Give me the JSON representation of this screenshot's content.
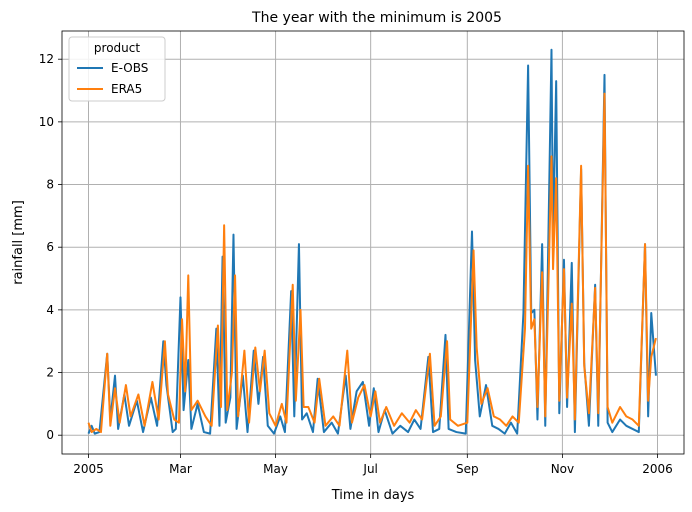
{
  "chart_data": {
    "type": "line",
    "title": "The year with the minimum is 2005",
    "xlabel": "Time in days",
    "ylabel": "rainfall [mm]",
    "xlim": [
      "2004-12-15",
      "2006-01-18"
    ],
    "ylim": [
      -0.6,
      12.9
    ],
    "x_ticks": [
      {
        "date": "2005-01-01",
        "label": "2005"
      },
      {
        "date": "2005-03-01",
        "label": "Mar"
      },
      {
        "date": "2005-05-01",
        "label": "May"
      },
      {
        "date": "2005-07-01",
        "label": "Jul"
      },
      {
        "date": "2005-09-01",
        "label": "Sep"
      },
      {
        "date": "2005-11-01",
        "label": "Nov"
      },
      {
        "date": "2006-01-01",
        "label": "2006"
      }
    ],
    "y_ticks": [
      0,
      2,
      4,
      6,
      8,
      10,
      12
    ],
    "grid": true,
    "legend": {
      "title": "product",
      "placement": "top-left"
    },
    "series": [
      {
        "name": "E-OBS",
        "color": "#1f77b4",
        "points": [
          [
            "2005-01-01",
            0.05
          ],
          [
            "2005-01-03",
            0.3
          ],
          [
            "2005-01-05",
            0.05
          ],
          [
            "2005-01-08",
            0.1
          ],
          [
            "2005-01-13",
            2.6
          ],
          [
            "2005-01-15",
            0.5
          ],
          [
            "2005-01-18",
            1.9
          ],
          [
            "2005-01-20",
            0.2
          ],
          [
            "2005-01-24",
            1.3
          ],
          [
            "2005-01-27",
            0.3
          ],
          [
            "2005-02-01",
            1.1
          ],
          [
            "2005-02-05",
            0.1
          ],
          [
            "2005-02-10",
            1.2
          ],
          [
            "2005-02-14",
            0.3
          ],
          [
            "2005-02-18",
            3.0
          ],
          [
            "2005-02-20",
            1.6
          ],
          [
            "2005-02-24",
            0.1
          ],
          [
            "2005-02-26",
            0.2
          ],
          [
            "2005-03-01",
            4.4
          ],
          [
            "2005-03-03",
            0.8
          ],
          [
            "2005-03-06",
            2.4
          ],
          [
            "2005-03-08",
            0.2
          ],
          [
            "2005-03-12",
            1.0
          ],
          [
            "2005-03-16",
            0.1
          ],
          [
            "2005-03-20",
            0.05
          ],
          [
            "2005-03-24",
            3.4
          ],
          [
            "2005-03-26",
            0.3
          ],
          [
            "2005-03-28",
            5.7
          ],
          [
            "2005-03-30",
            0.4
          ],
          [
            "2005-04-02",
            1.2
          ],
          [
            "2005-04-04",
            6.4
          ],
          [
            "2005-04-06",
            0.2
          ],
          [
            "2005-04-10",
            1.9
          ],
          [
            "2005-04-13",
            0.1
          ],
          [
            "2005-04-17",
            2.7
          ],
          [
            "2005-04-20",
            1.0
          ],
          [
            "2005-04-23",
            2.5
          ],
          [
            "2005-04-26",
            0.3
          ],
          [
            "2005-04-30",
            0.05
          ],
          [
            "2005-05-04",
            0.6
          ],
          [
            "2005-05-07",
            0.1
          ],
          [
            "2005-05-11",
            4.6
          ],
          [
            "2005-05-13",
            0.6
          ],
          [
            "2005-05-16",
            6.1
          ],
          [
            "2005-05-18",
            0.5
          ],
          [
            "2005-05-21",
            0.7
          ],
          [
            "2005-05-25",
            0.1
          ],
          [
            "2005-05-28",
            1.8
          ],
          [
            "2005-06-01",
            0.1
          ],
          [
            "2005-06-06",
            0.4
          ],
          [
            "2005-06-10",
            0.05
          ],
          [
            "2005-06-15",
            1.9
          ],
          [
            "2005-06-18",
            0.2
          ],
          [
            "2005-06-22",
            1.4
          ],
          [
            "2005-06-26",
            1.7
          ],
          [
            "2005-06-30",
            0.3
          ],
          [
            "2005-07-03",
            1.5
          ],
          [
            "2005-07-06",
            0.1
          ],
          [
            "2005-07-10",
            0.8
          ],
          [
            "2005-07-15",
            0.05
          ],
          [
            "2005-07-20",
            0.3
          ],
          [
            "2005-07-25",
            0.1
          ],
          [
            "2005-07-29",
            0.5
          ],
          [
            "2005-08-02",
            0.2
          ],
          [
            "2005-08-07",
            2.5
          ],
          [
            "2005-08-10",
            0.1
          ],
          [
            "2005-08-14",
            0.2
          ],
          [
            "2005-08-18",
            3.2
          ],
          [
            "2005-08-20",
            0.2
          ],
          [
            "2005-08-25",
            0.1
          ],
          [
            "2005-08-31",
            0.05
          ],
          [
            "2005-09-04",
            6.5
          ],
          [
            "2005-09-06",
            2.4
          ],
          [
            "2005-09-09",
            0.6
          ],
          [
            "2005-09-13",
            1.6
          ],
          [
            "2005-09-17",
            0.3
          ],
          [
            "2005-09-21",
            0.2
          ],
          [
            "2005-09-25",
            0.05
          ],
          [
            "2005-09-29",
            0.4
          ],
          [
            "2005-10-03",
            0.05
          ],
          [
            "2005-10-07",
            3.9
          ],
          [
            "2005-10-10",
            11.8
          ],
          [
            "2005-10-12",
            3.9
          ],
          [
            "2005-10-14",
            4.0
          ],
          [
            "2005-10-16",
            0.5
          ],
          [
            "2005-10-19",
            6.1
          ],
          [
            "2005-10-21",
            0.3
          ],
          [
            "2005-10-25",
            12.3
          ],
          [
            "2005-10-26",
            6.2
          ],
          [
            "2005-10-28",
            11.3
          ],
          [
            "2005-10-30",
            0.7
          ],
          [
            "2005-11-02",
            5.6
          ],
          [
            "2005-11-04",
            0.9
          ],
          [
            "2005-11-07",
            5.5
          ],
          [
            "2005-11-09",
            0.1
          ],
          [
            "2005-11-13",
            8.5
          ],
          [
            "2005-11-15",
            2.3
          ],
          [
            "2005-11-18",
            0.3
          ],
          [
            "2005-11-22",
            4.8
          ],
          [
            "2005-11-24",
            0.3
          ],
          [
            "2005-11-28",
            11.5
          ],
          [
            "2005-11-30",
            0.4
          ],
          [
            "2005-12-03",
            0.1
          ],
          [
            "2005-12-08",
            0.5
          ],
          [
            "2005-12-12",
            0.3
          ],
          [
            "2005-12-16",
            0.2
          ],
          [
            "2005-12-20",
            0.1
          ],
          [
            "2005-12-24",
            6.1
          ],
          [
            "2005-12-26",
            0.6
          ],
          [
            "2005-12-28",
            3.9
          ],
          [
            "2005-12-31",
            1.9
          ]
        ]
      },
      {
        "name": "ERA5",
        "color": "#ff7f0e",
        "points": [
          [
            "2005-01-01",
            0.4
          ],
          [
            "2005-01-03",
            0.1
          ],
          [
            "2005-01-06",
            0.2
          ],
          [
            "2005-01-09",
            0.1
          ],
          [
            "2005-01-13",
            2.6
          ],
          [
            "2005-01-15",
            0.3
          ],
          [
            "2005-01-18",
            1.5
          ],
          [
            "2005-01-21",
            0.4
          ],
          [
            "2005-01-25",
            1.6
          ],
          [
            "2005-01-28",
            0.6
          ],
          [
            "2005-02-02",
            1.3
          ],
          [
            "2005-02-06",
            0.3
          ],
          [
            "2005-02-11",
            1.7
          ],
          [
            "2005-02-15",
            0.5
          ],
          [
            "2005-02-19",
            3.0
          ],
          [
            "2005-02-21",
            1.3
          ],
          [
            "2005-02-25",
            0.5
          ],
          [
            "2005-02-28",
            0.4
          ],
          [
            "2005-03-02",
            3.7
          ],
          [
            "2005-03-04",
            1.4
          ],
          [
            "2005-03-06",
            5.1
          ],
          [
            "2005-03-08",
            0.8
          ],
          [
            "2005-03-12",
            1.1
          ],
          [
            "2005-03-17",
            0.6
          ],
          [
            "2005-03-21",
            0.3
          ],
          [
            "2005-03-25",
            3.5
          ],
          [
            "2005-03-27",
            0.9
          ],
          [
            "2005-03-29",
            6.7
          ],
          [
            "2005-03-31",
            0.8
          ],
          [
            "2005-04-03",
            2.0
          ],
          [
            "2005-04-05",
            5.1
          ],
          [
            "2005-04-07",
            0.6
          ],
          [
            "2005-04-11",
            2.7
          ],
          [
            "2005-04-14",
            0.4
          ],
          [
            "2005-04-18",
            2.8
          ],
          [
            "2005-04-21",
            1.4
          ],
          [
            "2005-04-24",
            2.7
          ],
          [
            "2005-04-27",
            0.7
          ],
          [
            "2005-05-01",
            0.3
          ],
          [
            "2005-05-05",
            1.0
          ],
          [
            "2005-05-08",
            0.4
          ],
          [
            "2005-05-12",
            4.8
          ],
          [
            "2005-05-14",
            1.1
          ],
          [
            "2005-05-17",
            4.0
          ],
          [
            "2005-05-19",
            0.9
          ],
          [
            "2005-05-22",
            0.9
          ],
          [
            "2005-05-26",
            0.4
          ],
          [
            "2005-05-29",
            1.8
          ],
          [
            "2005-06-02",
            0.3
          ],
          [
            "2005-06-07",
            0.6
          ],
          [
            "2005-06-11",
            0.3
          ],
          [
            "2005-06-16",
            2.7
          ],
          [
            "2005-06-19",
            0.4
          ],
          [
            "2005-06-23",
            1.2
          ],
          [
            "2005-06-27",
            1.6
          ],
          [
            "2005-07-01",
            0.6
          ],
          [
            "2005-07-04",
            1.4
          ],
          [
            "2005-07-07",
            0.4
          ],
          [
            "2005-07-11",
            0.9
          ],
          [
            "2005-07-16",
            0.3
          ],
          [
            "2005-07-21",
            0.7
          ],
          [
            "2005-07-26",
            0.4
          ],
          [
            "2005-07-30",
            0.8
          ],
          [
            "2005-08-03",
            0.5
          ],
          [
            "2005-08-08",
            2.6
          ],
          [
            "2005-08-11",
            0.3
          ],
          [
            "2005-08-15",
            0.6
          ],
          [
            "2005-08-19",
            3.0
          ],
          [
            "2005-08-21",
            0.5
          ],
          [
            "2005-08-26",
            0.3
          ],
          [
            "2005-09-01",
            0.4
          ],
          [
            "2005-09-05",
            5.9
          ],
          [
            "2005-09-07",
            2.8
          ],
          [
            "2005-09-10",
            1.0
          ],
          [
            "2005-09-14",
            1.5
          ],
          [
            "2005-09-18",
            0.6
          ],
          [
            "2005-09-22",
            0.5
          ],
          [
            "2005-09-26",
            0.3
          ],
          [
            "2005-09-30",
            0.6
          ],
          [
            "2005-10-04",
            0.4
          ],
          [
            "2005-10-08",
            3.4
          ],
          [
            "2005-10-10",
            8.6
          ],
          [
            "2005-10-12",
            3.4
          ],
          [
            "2005-10-14",
            3.7
          ],
          [
            "2005-10-16",
            0.9
          ],
          [
            "2005-10-19",
            5.2
          ],
          [
            "2005-10-21",
            0.6
          ],
          [
            "2005-10-25",
            8.9
          ],
          [
            "2005-10-26",
            5.3
          ],
          [
            "2005-10-28",
            8.2
          ],
          [
            "2005-10-30",
            1.1
          ],
          [
            "2005-11-02",
            5.3
          ],
          [
            "2005-11-04",
            1.2
          ],
          [
            "2005-11-07",
            4.2
          ],
          [
            "2005-11-09",
            0.5
          ],
          [
            "2005-11-13",
            8.6
          ],
          [
            "2005-11-15",
            2.2
          ],
          [
            "2005-11-18",
            0.7
          ],
          [
            "2005-11-22",
            4.7
          ],
          [
            "2005-11-24",
            0.7
          ],
          [
            "2005-11-28",
            10.9
          ],
          [
            "2005-11-30",
            0.9
          ],
          [
            "2005-12-03",
            0.4
          ],
          [
            "2005-12-08",
            0.9
          ],
          [
            "2005-12-12",
            0.6
          ],
          [
            "2005-12-16",
            0.5
          ],
          [
            "2005-12-20",
            0.3
          ],
          [
            "2005-12-24",
            6.1
          ],
          [
            "2005-12-26",
            1.1
          ],
          [
            "2005-12-28",
            2.5
          ],
          [
            "2005-12-31",
            3.1
          ]
        ]
      }
    ]
  }
}
